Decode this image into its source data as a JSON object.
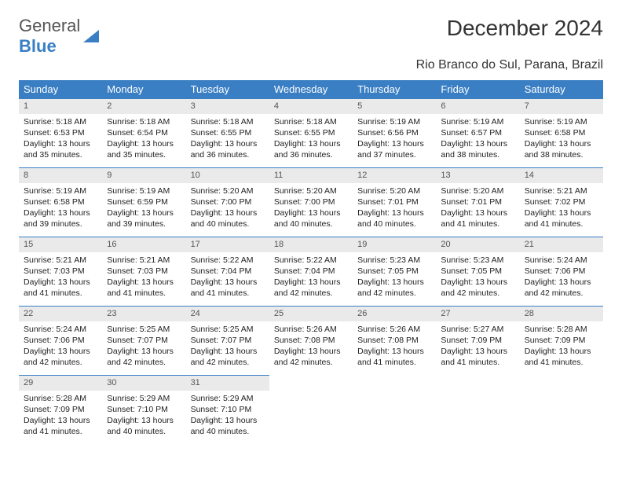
{
  "logo": {
    "text1": "General",
    "text2": "Blue"
  },
  "title": "December 2024",
  "subtitle": "Rio Branco do Sul, Parana, Brazil",
  "colors": {
    "header_bg": "#3a7fc4",
    "header_text": "#ffffff",
    "daynum_bg": "#eaeaea",
    "border": "#3a7fc4",
    "text": "#222222",
    "background": "#ffffff"
  },
  "typography": {
    "title_fontsize": 28,
    "subtitle_fontsize": 16,
    "header_fontsize": 13,
    "cell_fontsize": 10.5
  },
  "day_headers": [
    "Sunday",
    "Monday",
    "Tuesday",
    "Wednesday",
    "Thursday",
    "Friday",
    "Saturday"
  ],
  "weeks": [
    [
      {
        "n": "1",
        "sr": "5:18 AM",
        "ss": "6:53 PM",
        "dl": "13 hours and 35 minutes."
      },
      {
        "n": "2",
        "sr": "5:18 AM",
        "ss": "6:54 PM",
        "dl": "13 hours and 35 minutes."
      },
      {
        "n": "3",
        "sr": "5:18 AM",
        "ss": "6:55 PM",
        "dl": "13 hours and 36 minutes."
      },
      {
        "n": "4",
        "sr": "5:18 AM",
        "ss": "6:55 PM",
        "dl": "13 hours and 36 minutes."
      },
      {
        "n": "5",
        "sr": "5:19 AM",
        "ss": "6:56 PM",
        "dl": "13 hours and 37 minutes."
      },
      {
        "n": "6",
        "sr": "5:19 AM",
        "ss": "6:57 PM",
        "dl": "13 hours and 38 minutes."
      },
      {
        "n": "7",
        "sr": "5:19 AM",
        "ss": "6:58 PM",
        "dl": "13 hours and 38 minutes."
      }
    ],
    [
      {
        "n": "8",
        "sr": "5:19 AM",
        "ss": "6:58 PM",
        "dl": "13 hours and 39 minutes."
      },
      {
        "n": "9",
        "sr": "5:19 AM",
        "ss": "6:59 PM",
        "dl": "13 hours and 39 minutes."
      },
      {
        "n": "10",
        "sr": "5:20 AM",
        "ss": "7:00 PM",
        "dl": "13 hours and 40 minutes."
      },
      {
        "n": "11",
        "sr": "5:20 AM",
        "ss": "7:00 PM",
        "dl": "13 hours and 40 minutes."
      },
      {
        "n": "12",
        "sr": "5:20 AM",
        "ss": "7:01 PM",
        "dl": "13 hours and 40 minutes."
      },
      {
        "n": "13",
        "sr": "5:20 AM",
        "ss": "7:01 PM",
        "dl": "13 hours and 41 minutes."
      },
      {
        "n": "14",
        "sr": "5:21 AM",
        "ss": "7:02 PM",
        "dl": "13 hours and 41 minutes."
      }
    ],
    [
      {
        "n": "15",
        "sr": "5:21 AM",
        "ss": "7:03 PM",
        "dl": "13 hours and 41 minutes."
      },
      {
        "n": "16",
        "sr": "5:21 AM",
        "ss": "7:03 PM",
        "dl": "13 hours and 41 minutes."
      },
      {
        "n": "17",
        "sr": "5:22 AM",
        "ss": "7:04 PM",
        "dl": "13 hours and 41 minutes."
      },
      {
        "n": "18",
        "sr": "5:22 AM",
        "ss": "7:04 PM",
        "dl": "13 hours and 42 minutes."
      },
      {
        "n": "19",
        "sr": "5:23 AM",
        "ss": "7:05 PM",
        "dl": "13 hours and 42 minutes."
      },
      {
        "n": "20",
        "sr": "5:23 AM",
        "ss": "7:05 PM",
        "dl": "13 hours and 42 minutes."
      },
      {
        "n": "21",
        "sr": "5:24 AM",
        "ss": "7:06 PM",
        "dl": "13 hours and 42 minutes."
      }
    ],
    [
      {
        "n": "22",
        "sr": "5:24 AM",
        "ss": "7:06 PM",
        "dl": "13 hours and 42 minutes."
      },
      {
        "n": "23",
        "sr": "5:25 AM",
        "ss": "7:07 PM",
        "dl": "13 hours and 42 minutes."
      },
      {
        "n": "24",
        "sr": "5:25 AM",
        "ss": "7:07 PM",
        "dl": "13 hours and 42 minutes."
      },
      {
        "n": "25",
        "sr": "5:26 AM",
        "ss": "7:08 PM",
        "dl": "13 hours and 42 minutes."
      },
      {
        "n": "26",
        "sr": "5:26 AM",
        "ss": "7:08 PM",
        "dl": "13 hours and 41 minutes."
      },
      {
        "n": "27",
        "sr": "5:27 AM",
        "ss": "7:09 PM",
        "dl": "13 hours and 41 minutes."
      },
      {
        "n": "28",
        "sr": "5:28 AM",
        "ss": "7:09 PM",
        "dl": "13 hours and 41 minutes."
      }
    ],
    [
      {
        "n": "29",
        "sr": "5:28 AM",
        "ss": "7:09 PM",
        "dl": "13 hours and 41 minutes."
      },
      {
        "n": "30",
        "sr": "5:29 AM",
        "ss": "7:10 PM",
        "dl": "13 hours and 40 minutes."
      },
      {
        "n": "31",
        "sr": "5:29 AM",
        "ss": "7:10 PM",
        "dl": "13 hours and 40 minutes."
      },
      null,
      null,
      null,
      null
    ]
  ],
  "labels": {
    "sunrise": "Sunrise:",
    "sunset": "Sunset:",
    "daylight": "Daylight:"
  }
}
